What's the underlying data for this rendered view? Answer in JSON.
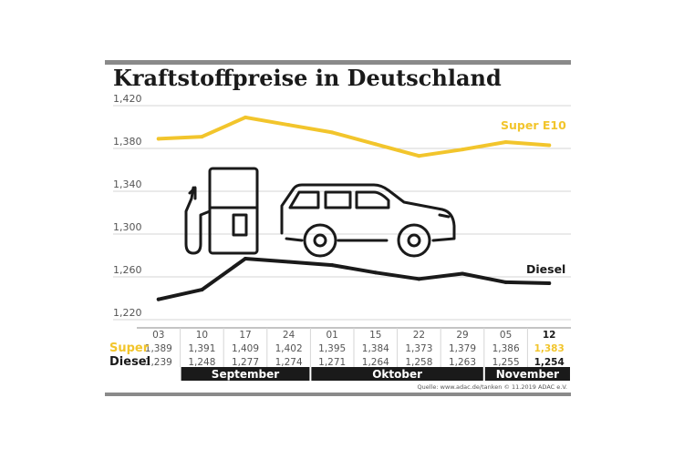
{
  "title": "Kraftstoffpreise in Deutschland",
  "source": "Quelle: www.adac.de/tanken   © 11.2019  ADAC e.V.",
  "colors": {
    "super": "#f2c52c",
    "diesel": "#1a1a1a",
    "rule": "#8a8a8a",
    "grid": "#d6d6d6",
    "month_bar": "#1a1a1a"
  },
  "icons": [
    "fuel-pump-icon",
    "car-icon"
  ],
  "chart_data": {
    "type": "line",
    "title": "Kraftstoffpreise in Deutschland",
    "categories": [
      "03",
      "10",
      "17",
      "24",
      "01",
      "15",
      "22",
      "29",
      "05",
      "12"
    ],
    "ylim": [
      1.22,
      1.42
    ],
    "yticks": [
      "1,420",
      "1,380",
      "1,340",
      "1,300",
      "1,260",
      "1,220"
    ],
    "ytick_values": [
      1.42,
      1.38,
      1.34,
      1.3,
      1.26,
      1.22
    ],
    "grid": true,
    "series": [
      {
        "name": "Super E10",
        "row_label": "Super",
        "values": [
          1.389,
          1.391,
          1.409,
          1.402,
          1.395,
          1.384,
          1.373,
          1.379,
          1.386,
          1.383
        ],
        "labels": [
          "1,389",
          "1,391",
          "1,409",
          "1,402",
          "1,395",
          "1,384",
          "1,373",
          "1,379",
          "1,386",
          "1,383"
        ]
      },
      {
        "name": "Diesel",
        "row_label": "Diesel",
        "values": [
          1.239,
          1.248,
          1.277,
          1.274,
          1.271,
          1.264,
          1.258,
          1.263,
          1.255,
          1.254
        ],
        "labels": [
          "1,239",
          "1,248",
          "1,277",
          "1,274",
          "1,271",
          "1,264",
          "1,258",
          "1,263",
          "1,255",
          "1,254"
        ]
      }
    ],
    "months": [
      {
        "name": "September",
        "from": 1,
        "to": 3
      },
      {
        "name": "Oktober",
        "from": 4,
        "to": 7
      },
      {
        "name": "November",
        "from": 8,
        "to": 9
      }
    ]
  }
}
